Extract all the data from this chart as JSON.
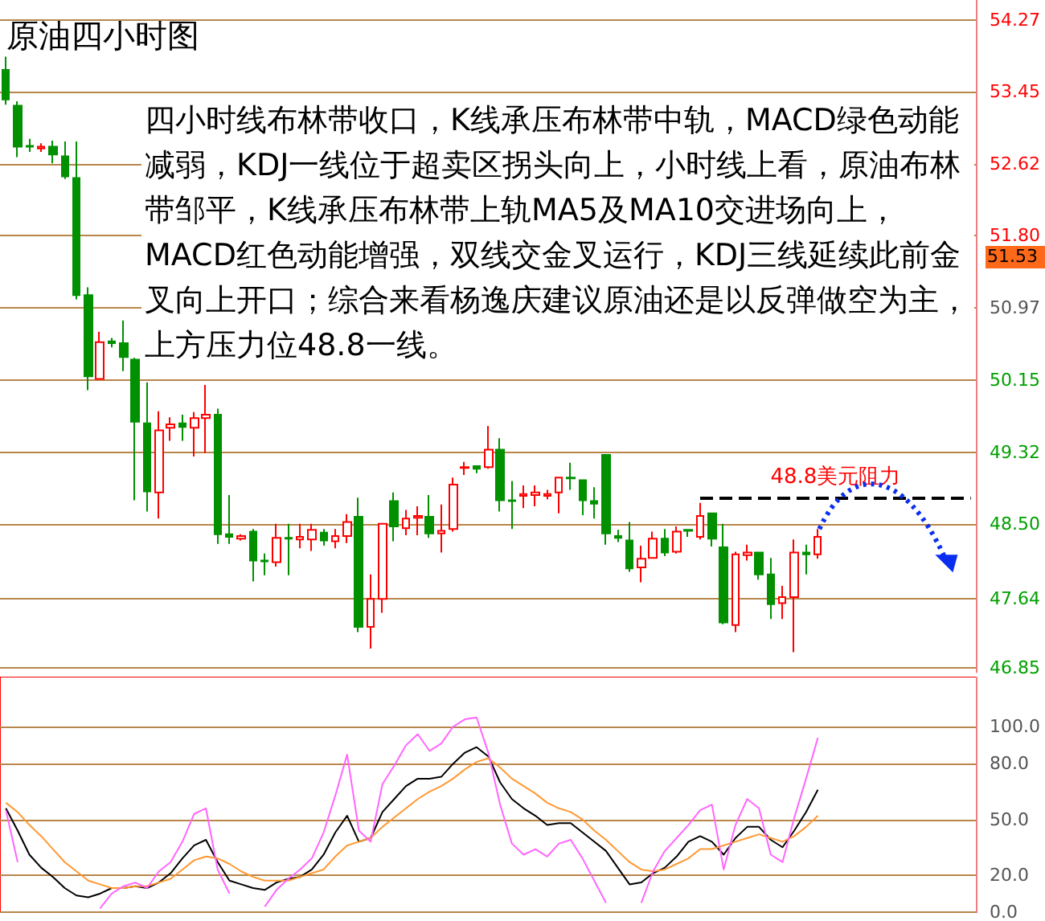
{
  "chart_data": [
    {
      "type": "candlestick",
      "title": "原油四小时图",
      "categories": [
        null,
        null,
        null,
        null,
        null,
        null,
        null,
        null,
        null,
        null,
        null,
        null,
        null,
        null,
        null,
        null,
        null,
        null,
        null,
        null,
        null,
        null,
        null,
        null,
        null,
        null,
        null,
        null,
        null,
        null,
        null,
        null,
        null,
        null,
        null,
        null,
        null,
        null,
        null,
        null,
        null,
        null,
        null,
        null,
        null,
        null,
        null,
        null,
        null,
        null,
        null,
        null,
        null,
        null,
        null,
        null,
        null,
        null,
        null,
        null,
        null,
        null,
        null,
        null,
        null,
        null,
        null,
        null,
        null,
        null,
        null,
        null,
        null,
        null,
        null,
        null,
        null,
        null,
        null,
        null,
        null,
        null,
        null
      ],
      "ohlc": [
        [
          53.7,
          53.85,
          53.3,
          53.36
        ],
        [
          53.29,
          53.34,
          52.7,
          52.82
        ],
        [
          52.83,
          52.91,
          52.76,
          52.82
        ],
        [
          52.8,
          52.86,
          52.76,
          52.82
        ],
        [
          52.82,
          52.89,
          52.63,
          52.73
        ],
        [
          52.71,
          52.88,
          52.45,
          52.48
        ],
        [
          52.46,
          52.88,
          51.07,
          51.12
        ],
        [
          51.12,
          51.21,
          50.03,
          50.19
        ],
        [
          50.16,
          50.7,
          50.15,
          50.58
        ],
        [
          50.59,
          50.63,
          50.52,
          50.57
        ],
        [
          50.57,
          50.83,
          50.25,
          50.41
        ],
        [
          50.38,
          50.4,
          48.77,
          49.67
        ],
        [
          49.65,
          50.12,
          48.64,
          48.87
        ],
        [
          48.86,
          49.79,
          48.56,
          49.57
        ],
        [
          49.6,
          49.72,
          49.45,
          49.64
        ],
        [
          49.65,
          49.75,
          49.45,
          49.61
        ],
        [
          49.6,
          49.78,
          49.27,
          49.71
        ],
        [
          49.71,
          50.09,
          49.31,
          49.75
        ],
        [
          49.75,
          49.82,
          48.27,
          48.38
        ],
        [
          48.38,
          48.83,
          48.27,
          48.35
        ],
        [
          48.33,
          48.38,
          48.31,
          48.36
        ],
        [
          48.41,
          48.44,
          47.84,
          48.08
        ],
        [
          48.08,
          48.16,
          47.91,
          48.07
        ],
        [
          48.06,
          48.5,
          48.01,
          48.34
        ],
        [
          48.34,
          48.5,
          47.91,
          48.33
        ],
        [
          48.32,
          48.5,
          48.22,
          48.35
        ],
        [
          48.32,
          48.5,
          48.19,
          48.43
        ],
        [
          48.4,
          48.44,
          48.25,
          48.31
        ],
        [
          48.3,
          48.44,
          48.22,
          48.36
        ],
        [
          48.36,
          48.61,
          48.28,
          48.52
        ],
        [
          48.58,
          48.8,
          47.26,
          47.32
        ],
        [
          47.32,
          47.92,
          47.07,
          47.64
        ],
        [
          47.64,
          48.5,
          47.48,
          48.5
        ],
        [
          48.76,
          48.86,
          48.3,
          48.47
        ],
        [
          48.45,
          48.66,
          48.37,
          48.56
        ],
        [
          48.57,
          48.7,
          48.37,
          48.59
        ],
        [
          48.58,
          48.83,
          48.34,
          48.39
        ],
        [
          48.39,
          48.72,
          48.17,
          48.42
        ],
        [
          48.44,
          49.03,
          48.41,
          48.95
        ],
        [
          49.14,
          49.21,
          49.06,
          49.15
        ],
        [
          49.16,
          49.17,
          49.08,
          49.13
        ],
        [
          49.15,
          49.62,
          49.13,
          49.35
        ],
        [
          49.35,
          49.48,
          48.64,
          48.77
        ],
        [
          48.77,
          48.99,
          48.44,
          48.76
        ],
        [
          48.82,
          48.94,
          48.68,
          48.84
        ],
        [
          48.83,
          48.94,
          48.7,
          48.86
        ],
        [
          48.82,
          48.89,
          48.78,
          48.84
        ],
        [
          48.86,
          49.03,
          48.62,
          49.03
        ],
        [
          49.03,
          49.2,
          48.89,
          49.02
        ],
        [
          49.0,
          49.0,
          48.6,
          48.77
        ],
        [
          48.76,
          48.92,
          48.56,
          48.73
        ],
        [
          49.29,
          49.29,
          48.26,
          48.39
        ],
        [
          48.36,
          48.43,
          48.29,
          48.34
        ],
        [
          48.31,
          48.52,
          47.95,
          47.99
        ],
        [
          48.0,
          48.25,
          47.83,
          48.1
        ],
        [
          48.11,
          48.41,
          48.1,
          48.33
        ],
        [
          48.33,
          48.44,
          48.13,
          48.17
        ],
        [
          48.18,
          48.47,
          48.16,
          48.41
        ],
        [
          48.43,
          48.44,
          48.35,
          48.42
        ],
        [
          48.35,
          48.74,
          48.32,
          48.59
        ],
        [
          48.62,
          48.62,
          48.24,
          48.33
        ],
        [
          48.23,
          48.5,
          47.35,
          47.37
        ],
        [
          47.34,
          48.18,
          47.26,
          48.15
        ],
        [
          48.14,
          48.26,
          48.08,
          48.17
        ],
        [
          48.17,
          48.17,
          47.86,
          47.92
        ],
        [
          47.92,
          48.11,
          47.41,
          47.58
        ],
        [
          47.59,
          47.79,
          47.41,
          47.66
        ],
        [
          47.66,
          48.32,
          47.03,
          48.17
        ],
        [
          48.17,
          48.26,
          47.92,
          48.15
        ],
        [
          48.15,
          48.44,
          48.1,
          48.35
        ],
        null,
        null,
        null,
        null,
        null,
        null,
        null,
        null,
        null,
        null,
        null,
        null,
        null
      ],
      "ylim": [
        46.8,
        54.5
      ],
      "yticks": [
        46.85,
        47.64,
        {
          "value": 48.5,
          "label": "48.50"
        },
        49.32,
        50.15,
        50.97,
        {
          "value": 51.8,
          "label": "51.80"
        },
        52.62,
        53.45,
        54.27
      ],
      "grid": "y",
      "tick_labels": "y",
      "ref_lines": [
        {
          "axis": "y",
          "value": 48.8,
          "label": "48.8美元阻力",
          "color": "#000000",
          "line_style": "dashed"
        }
      ],
      "annotations": [
        "四小时线布林带收口，K线承压布林带中轨，MACD绿色动能减弱，KDJ一线位于超卖区拐头向上，小时线上看，原油布林带邹平，K线承压布林带上轨MA5及MA10交进场向上，MACD红色动能增强，双线交金叉运行，KDJ三线延续此前金叉向上开口；综合来看杨逸庆建议原油还是以反弹做空为主，上方压力位48.8一线。",
        "51.53"
      ]
    },
    {
      "type": "line",
      "categories": [
        null,
        null,
        null,
        null,
        null,
        null,
        null,
        null,
        null,
        null,
        null,
        null,
        null,
        null,
        null,
        null,
        null,
        null,
        null,
        null,
        null,
        null,
        null,
        null,
        null,
        null,
        null,
        null,
        null,
        null,
        null,
        null,
        null,
        null,
        null,
        null,
        null,
        null,
        null,
        null,
        null,
        null,
        null,
        null,
        null,
        null,
        null,
        null,
        null,
        null,
        null,
        null,
        null,
        null,
        null,
        null,
        null,
        null,
        null,
        null,
        null,
        null,
        null,
        null,
        null,
        null,
        null,
        null,
        null,
        null,
        null,
        null,
        null,
        null,
        null,
        null,
        null,
        null,
        null,
        null,
        null,
        null,
        null
      ],
      "series": [
        {
          "color": "#000000",
          "values": [
            56,
            44,
            31,
            24,
            19,
            13,
            9,
            8,
            10,
            13,
            13,
            14,
            13,
            16,
            21,
            29,
            36,
            39,
            27,
            17,
            15,
            13,
            12,
            16,
            18,
            19,
            23,
            31,
            43,
            52,
            38,
            40,
            54,
            61,
            68,
            72,
            72,
            73,
            80,
            86,
            89,
            84,
            70,
            61,
            56,
            52,
            47,
            48,
            48,
            43,
            38,
            33,
            24,
            15,
            16,
            21,
            24,
            30,
            38,
            41,
            38,
            31,
            40,
            46,
            46,
            39,
            35,
            44,
            54,
            66,
            null,
            null,
            null,
            null,
            null,
            null,
            null,
            null,
            null,
            null,
            null,
            null,
            null
          ]
        },
        {
          "color": "#ff9933",
          "values": [
            59,
            54,
            47,
            41,
            34,
            27,
            22,
            17,
            15,
            13,
            13,
            14,
            14,
            16,
            18,
            23,
            28,
            30,
            29,
            26,
            22,
            19,
            17,
            17,
            17,
            19,
            21,
            23,
            30,
            36,
            38,
            40,
            46,
            51,
            56,
            61,
            65,
            68,
            72,
            77,
            81,
            83,
            78,
            72,
            68,
            64,
            59,
            56,
            54,
            50,
            44,
            39,
            33,
            27,
            23,
            22,
            23,
            26,
            29,
            34,
            34,
            36,
            38,
            40,
            42,
            40,
            38,
            41,
            46,
            52,
            null,
            null,
            null,
            null,
            null,
            null,
            null,
            null,
            null,
            null,
            null,
            null,
            null
          ]
        },
        {
          "color": "#ff66ff",
          "values": [
            55,
            27,
            null,
            null,
            null,
            null,
            null,
            null,
            2,
            10,
            14,
            16,
            13,
            22,
            27,
            38,
            53,
            56,
            23,
            10,
            null,
            null,
            3,
            12,
            18,
            23,
            29,
            43,
            63,
            85,
            44,
            38,
            69,
            79,
            90,
            96,
            87,
            91,
            100,
            104,
            105,
            86,
            58,
            37,
            31,
            34,
            30,
            37,
            39,
            29,
            17,
            5,
            null,
            null,
            5,
            22,
            33,
            40,
            47,
            55,
            58,
            23,
            47,
            61,
            56,
            31,
            27,
            51,
            72,
            94,
            null,
            null,
            null,
            null,
            null,
            null,
            null,
            null,
            null,
            null,
            null,
            null,
            null
          ]
        }
      ],
      "ylim": [
        0,
        127
      ],
      "yticks": [
        {
          "value": 0,
          "label": "0.0"
        },
        {
          "value": 20,
          "label": "20.0"
        },
        {
          "value": 50,
          "label": "50.0"
        },
        {
          "value": 80,
          "label": "80.0"
        },
        {
          "value": 100,
          "label": "100.0"
        }
      ],
      "grid": "y",
      "tick_labels": "y",
      "line_style": "solid"
    }
  ]
}
